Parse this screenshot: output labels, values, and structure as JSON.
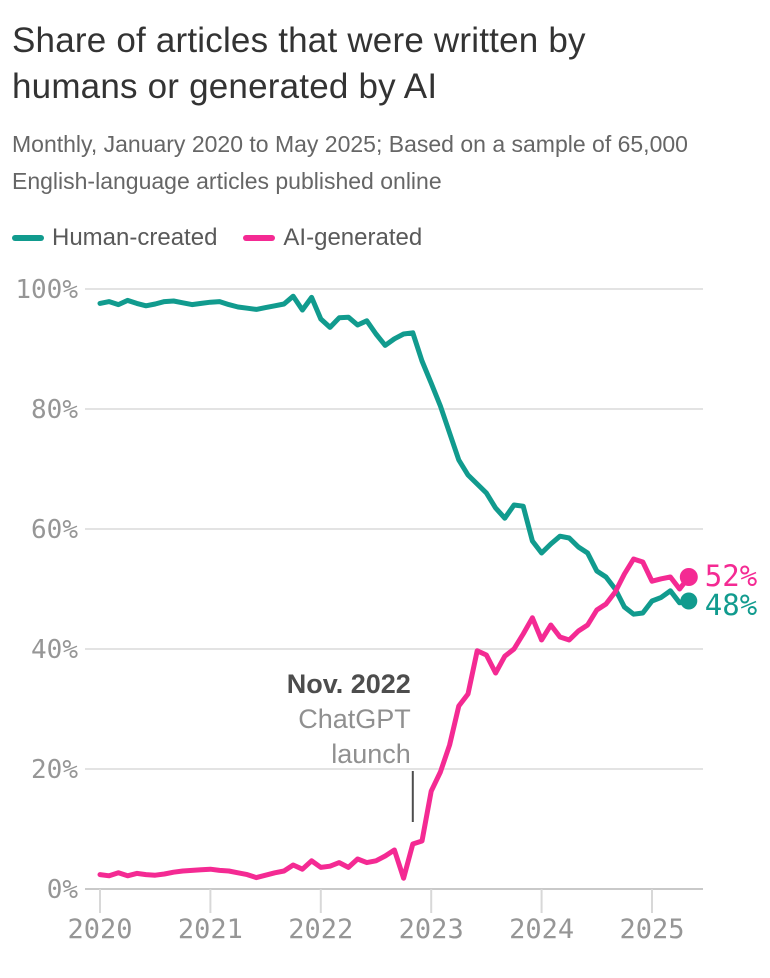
{
  "header": {
    "title": "Share of articles that were written by humans or generated by AI",
    "subtitle": "Monthly, January 2020 to May 2025; Based on a sample of 65,000 English-language articles published online"
  },
  "legend": {
    "items": [
      {
        "label": "Human-created",
        "color": "#119b8e"
      },
      {
        "label": "AI-generated",
        "color": "#f42a93"
      }
    ]
  },
  "annotation": {
    "line1": "Nov. 2022",
    "line2": "ChatGPT",
    "line3": "launch",
    "month_index": 34
  },
  "end_labels": [
    {
      "text": "52%",
      "color": "#f42a93"
    },
    {
      "text": "48%",
      "color": "#119b8e"
    }
  ],
  "colors": {
    "teal": "#119b8e",
    "pink": "#f42a93",
    "gridline": "#e3e3e3",
    "baseline": "#c9c9c9",
    "axis_tick": "#d8d8d8",
    "axis_label": "#969696",
    "annotation_dark": "#4d4d4d",
    "annotation_light": "#909090"
  },
  "chart_data": {
    "type": "line",
    "title": "Share of articles that were written by humans or generated by AI",
    "xlabel": "",
    "ylabel": "",
    "ylim": [
      0,
      100
    ],
    "grid": true,
    "legend_position": "top-left",
    "x_tick_labels": [
      "2020",
      "2021",
      "2022",
      "2023",
      "2024",
      "2025"
    ],
    "y_ticks": [
      {
        "v": 0,
        "label": "0%"
      },
      {
        "v": 20,
        "label": "20%"
      },
      {
        "v": 40,
        "label": "40%"
      },
      {
        "v": 60,
        "label": "60%"
      },
      {
        "v": 80,
        "label": "80%"
      },
      {
        "v": 100,
        "label": "100%"
      }
    ],
    "x_months": "Jan 2020 through May 2025, 65 monthly values per series",
    "series": [
      {
        "name": "Human-created",
        "color": "#119b8e",
        "values": [
          97.6,
          97.9,
          97.4,
          98.1,
          97.6,
          97.2,
          97.5,
          97.9,
          98.0,
          97.7,
          97.4,
          97.6,
          97.8,
          97.9,
          97.4,
          97.0,
          96.8,
          96.6,
          96.9,
          97.2,
          97.5,
          98.8,
          96.5,
          98.6,
          95.0,
          93.6,
          95.2,
          95.3,
          94.0,
          94.7,
          92.5,
          90.6,
          91.7,
          92.5,
          92.7,
          88.0,
          84.3,
          80.5,
          76.0,
          71.5,
          69.0,
          67.5,
          66.0,
          63.5,
          61.8,
          64.0,
          63.8,
          58.0,
          56.0,
          57.5,
          58.8,
          58.5,
          57.0,
          56.0,
          53.0,
          52.0,
          50.0,
          47.0,
          45.8,
          46.0,
          48.0,
          48.6,
          49.7,
          47.7,
          48.0
        ]
      },
      {
        "name": "AI-generated",
        "color": "#f42a93",
        "values": [
          2.4,
          2.2,
          2.7,
          2.2,
          2.6,
          2.4,
          2.3,
          2.5,
          2.8,
          3.0,
          3.1,
          3.2,
          3.3,
          3.1,
          3.0,
          2.7,
          2.4,
          1.9,
          2.3,
          2.7,
          3.0,
          4.0,
          3.3,
          4.7,
          3.6,
          3.8,
          4.4,
          3.6,
          5.0,
          4.4,
          4.7,
          5.5,
          6.5,
          1.8,
          7.5,
          8.0,
          16.3,
          19.5,
          24.0,
          30.5,
          32.5,
          39.7,
          39.0,
          36.0,
          38.8,
          40.0,
          42.5,
          45.2,
          41.5,
          44.0,
          42.0,
          41.5,
          43.0,
          44.0,
          46.5,
          47.5,
          49.5,
          52.5,
          55.0,
          54.5,
          51.3,
          51.7,
          52.0,
          50.0,
          52.0
        ]
      }
    ],
    "end_values": {
      "ai": 52,
      "human": 48
    }
  }
}
